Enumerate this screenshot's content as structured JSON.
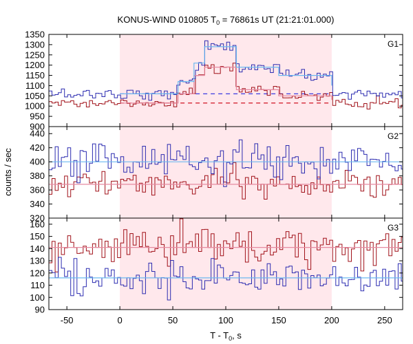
{
  "chart_data": {
    "type": "line",
    "title": "KONUS-WIND 010805 T",
    "title_sub": "0",
    "title_rest": " = 76861s UT (21:21:01.000)",
    "xlabel": "T - T",
    "xlabel_sub": "0",
    "xlabel_rest": ", s",
    "ylabel": "counts / sec",
    "xlim": [
      -67,
      267
    ],
    "xticks": [
      "-50",
      "0",
      "50",
      "100",
      "150",
      "200",
      "250"
    ],
    "xtick_values": [
      -50,
      0,
      50,
      100,
      150,
      200,
      250
    ],
    "shaded_interval": [
      0,
      200
    ],
    "grid": false,
    "colors": {
      "shade": "#ffe8ec",
      "series_a": "#2b2bb0",
      "series_b": "#a01018",
      "fit_a": "#6ab8f0",
      "fit_b": "#e68aa0",
      "bg_a": "#3a3ae0",
      "bg_b": "#d01020"
    },
    "panels": [
      {
        "label": "G1",
        "ylim": [
          900,
          1350
        ],
        "yticks": [
          "900",
          "950",
          "1000",
          "1050",
          "1100",
          "1150",
          "1200",
          "1250",
          "1300",
          "1350"
        ],
        "ytick_values": [
          900,
          950,
          1000,
          1050,
          1100,
          1150,
          1200,
          1250,
          1300,
          1350
        ],
        "background_a": 1060,
        "background_b": 1015,
        "fit_a": [
          [
            0,
            1060
          ],
          [
            55,
            1060
          ],
          [
            55,
            1120
          ],
          [
            70,
            1120
          ],
          [
            70,
            1210
          ],
          [
            80,
            1210
          ],
          [
            80,
            1290
          ],
          [
            110,
            1290
          ],
          [
            110,
            1190
          ],
          [
            150,
            1190
          ],
          [
            150,
            1150
          ],
          [
            200,
            1150
          ],
          [
            200,
            1100
          ]
        ],
        "fit_b": [
          [
            0,
            1015
          ],
          [
            55,
            1015
          ],
          [
            55,
            1060
          ],
          [
            70,
            1060
          ],
          [
            70,
            1150
          ],
          [
            80,
            1150
          ],
          [
            80,
            1190
          ],
          [
            110,
            1190
          ],
          [
            110,
            1080
          ],
          [
            150,
            1080
          ],
          [
            150,
            1050
          ],
          [
            200,
            1050
          ],
          [
            200,
            1030
          ]
        ]
      },
      {
        "label": "G2",
        "ylim": [
          320,
          450
        ],
        "yticks": [
          "320",
          "340",
          "360",
          "380",
          "400",
          "420",
          "440"
        ],
        "ytick_values": [
          320,
          340,
          360,
          380,
          400,
          420,
          440
        ],
        "fit_a": [
          [
            -67,
            400
          ],
          [
            267,
            400
          ]
        ],
        "fit_b": [
          [
            -67,
            368
          ],
          [
            267,
            368
          ]
        ]
      },
      {
        "label": "G3",
        "ylim": [
          90,
          165
        ],
        "yticks": [
          "90",
          "100",
          "110",
          "120",
          "130",
          "140",
          "150",
          "160"
        ],
        "ytick_values": [
          90,
          100,
          110,
          120,
          130,
          140,
          150,
          160
        ],
        "fit_a": [
          [
            -67,
            116
          ],
          [
            267,
            116
          ]
        ],
        "fit_b": [
          [
            -67,
            141
          ],
          [
            267,
            141
          ]
        ]
      }
    ],
    "series_note_bin": 2.944
  }
}
